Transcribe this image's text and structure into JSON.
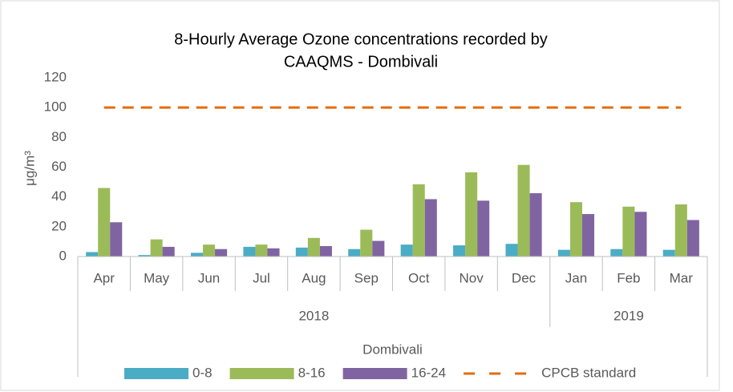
{
  "chart_data": {
    "type": "bar",
    "title": [
      "8-Hourly Average Ozone concentrations recorded by",
      "CAAQMS - Dombivali"
    ],
    "y_label": "μg/m³",
    "groups": [
      {
        "label": "2018",
        "categories": [
          "Apr",
          "May",
          "Jun",
          "Jul",
          "Aug",
          "Sep",
          "Oct",
          "Nov",
          "Dec"
        ]
      },
      {
        "label": "2019",
        "categories": [
          "Jan",
          "Feb",
          "Mar"
        ]
      }
    ],
    "super_group": "Dombivali",
    "series": [
      {
        "name": "0-8",
        "color": "#4bacc6",
        "values": [
          3,
          1,
          2.5,
          6.5,
          6,
          5,
          8,
          7.5,
          8.5,
          4.5,
          5,
          4.5
        ]
      },
      {
        "name": "8-16",
        "color": "#9bbb59",
        "values": [
          46,
          11.5,
          8,
          8,
          12.5,
          18,
          48.5,
          56.5,
          61.5,
          36.5,
          33.5,
          35
        ]
      },
      {
        "name": "16-24",
        "color": "#8064a2",
        "values": [
          23,
          6.5,
          5,
          5.5,
          7,
          10.5,
          38.5,
          37.5,
          42.5,
          28.5,
          30,
          24.5
        ]
      },
      {
        "name": "CPCB standard",
        "color": "#e46c0a",
        "type": "line",
        "dashed": true,
        "values": [
          100,
          100,
          100,
          100,
          100,
          100,
          100,
          100,
          100,
          100,
          100,
          100
        ]
      }
    ],
    "ylim": [
      0,
      120
    ],
    "yticks": [
      0,
      20,
      40,
      60,
      80,
      100,
      120
    ],
    "grid": false,
    "legend": "bottom"
  }
}
